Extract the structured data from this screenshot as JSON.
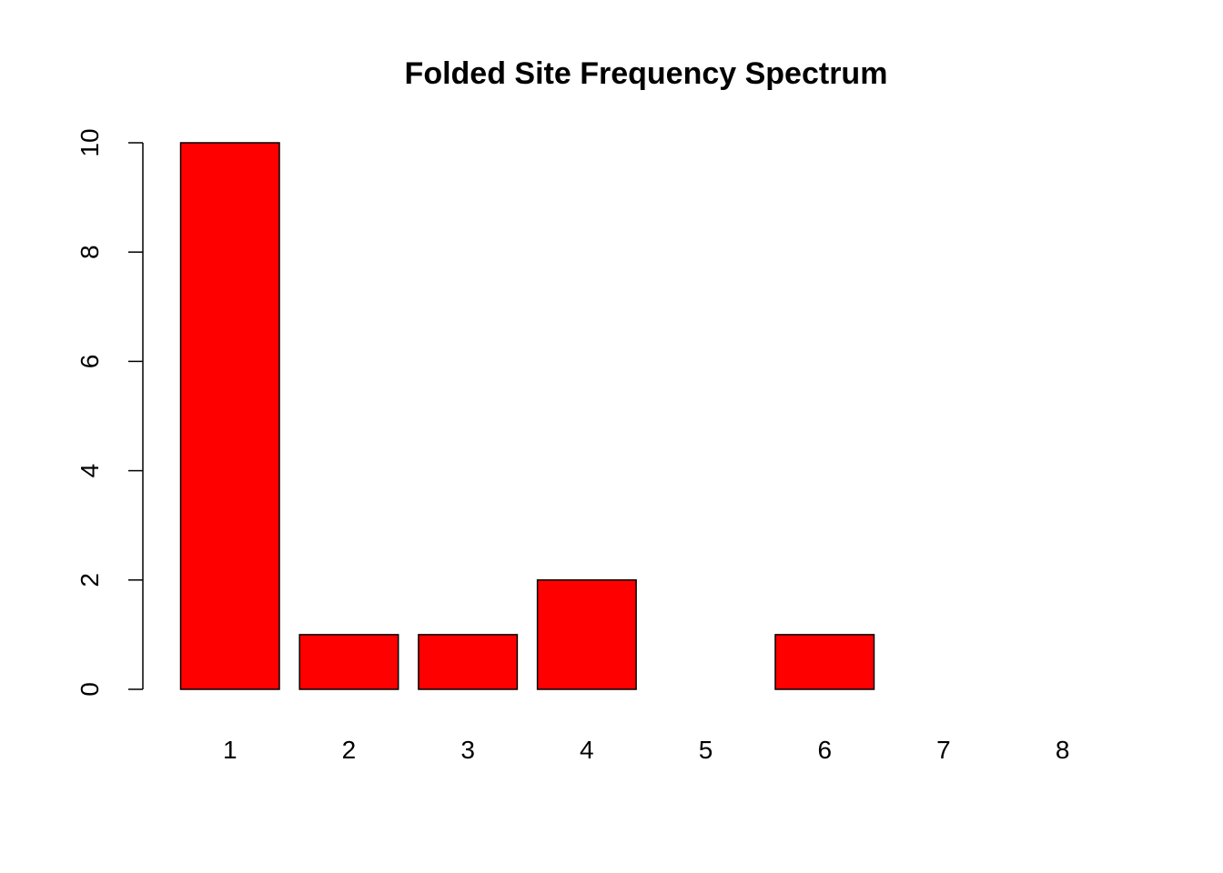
{
  "chart_data": {
    "type": "bar",
    "title": "Folded Site Frequency Spectrum",
    "xlabel": "",
    "ylabel": "",
    "categories": [
      "1",
      "2",
      "3",
      "4",
      "5",
      "6",
      "7",
      "8"
    ],
    "values": [
      10,
      1,
      1,
      2,
      0,
      1,
      0,
      0
    ],
    "ylim": [
      0,
      10
    ],
    "yticks": [
      0,
      2,
      4,
      6,
      8,
      10
    ],
    "bar_color": "#ff0000",
    "grid": false,
    "legend": "none"
  }
}
